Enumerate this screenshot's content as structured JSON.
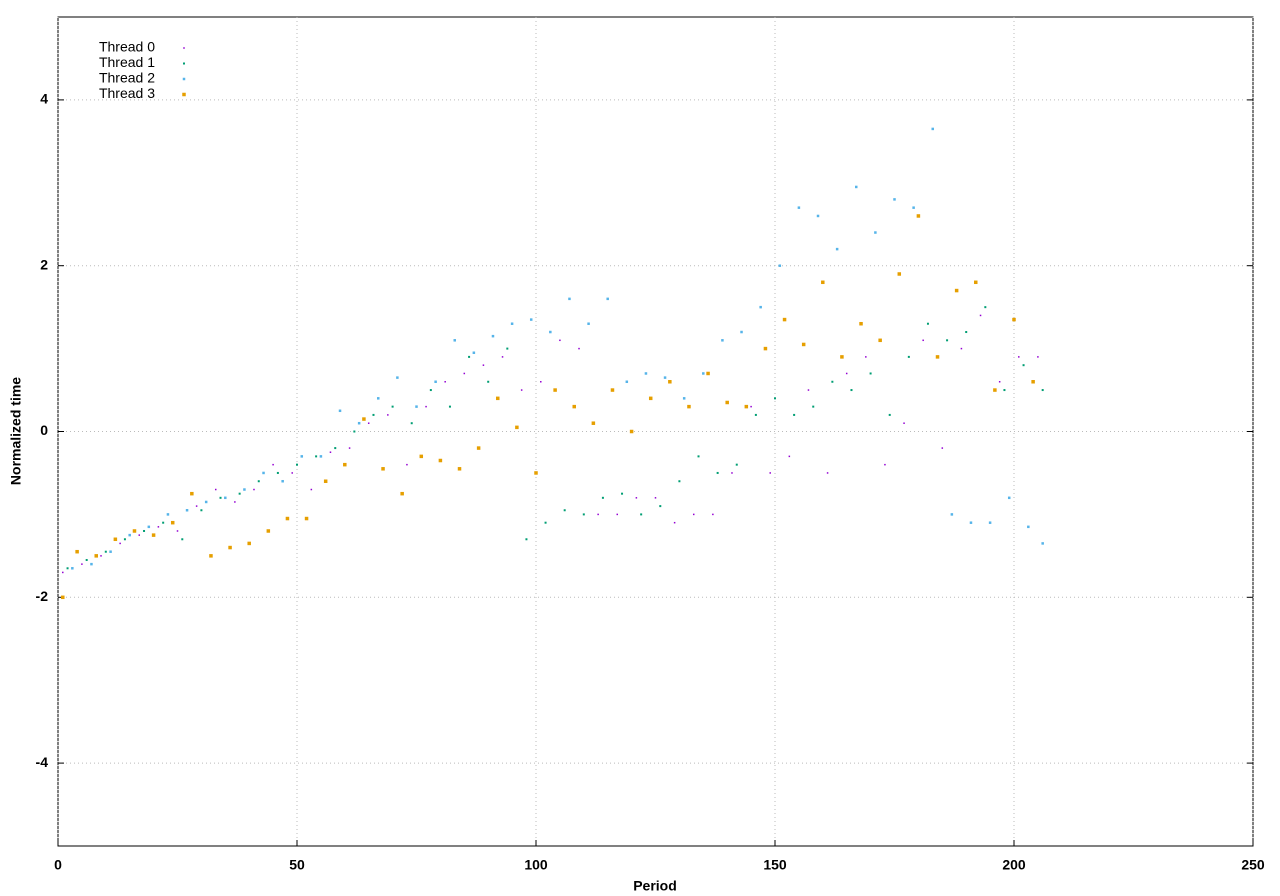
{
  "chart_data": {
    "type": "scatter",
    "x_label": "Period",
    "y_label": "Normalized time",
    "xlim": [
      0,
      250
    ],
    "xticks": [
      0,
      50,
      100,
      150,
      200,
      250
    ],
    "ylim": [
      -5,
      5
    ],
    "yticks": [
      -4,
      -2,
      0,
      2,
      4
    ],
    "grid": true,
    "legend": "top-left",
    "series": [
      {
        "name": "Thread 0",
        "color": "#9400d3",
        "x": [
          1,
          5,
          9,
          13,
          17,
          21,
          25,
          29,
          33,
          37,
          41,
          45,
          49,
          53,
          57,
          61,
          65,
          69,
          73,
          77,
          81,
          85,
          89,
          93,
          97,
          101,
          105,
          109,
          113,
          117,
          121,
          125,
          129,
          133,
          137,
          141,
          145,
          149,
          153,
          157,
          161,
          165,
          169,
          173,
          177,
          181,
          185,
          189,
          193,
          197,
          201,
          205
        ],
        "values": [
          -1.7,
          -1.6,
          -1.5,
          -1.35,
          -1.25,
          -1.15,
          -1.2,
          -0.9,
          -0.7,
          -0.85,
          -0.7,
          -0.4,
          -0.5,
          -0.7,
          -0.25,
          -0.2,
          0.1,
          0.2,
          -0.4,
          0.3,
          0.6,
          0.7,
          0.8,
          0.9,
          0.5,
          0.6,
          1.1,
          1.0,
          -1.0,
          -1.0,
          -0.8,
          -0.8,
          -1.1,
          -1.0,
          -1.0,
          -0.5,
          0.3,
          -0.5,
          -0.3,
          0.5,
          -0.5,
          0.7,
          0.9,
          -0.4,
          0.1,
          1.1,
          -0.2,
          1.0,
          1.4,
          0.6,
          0.9,
          0.9
        ]
      },
      {
        "name": "Thread 1",
        "color": "#009e73",
        "x": [
          2,
          6,
          10,
          14,
          18,
          22,
          26,
          30,
          34,
          38,
          42,
          46,
          50,
          54,
          58,
          62,
          66,
          70,
          74,
          78,
          82,
          86,
          90,
          94,
          98,
          102,
          106,
          110,
          114,
          118,
          122,
          126,
          130,
          134,
          138,
          142,
          146,
          150,
          154,
          158,
          162,
          166,
          170,
          174,
          178,
          182,
          186,
          190,
          194,
          198,
          202,
          206
        ],
        "values": [
          -1.65,
          -1.55,
          -1.45,
          -1.3,
          -1.2,
          -1.1,
          -1.3,
          -0.95,
          -0.8,
          -0.75,
          -0.6,
          -0.5,
          -0.4,
          -0.3,
          -0.2,
          0,
          0.2,
          0.3,
          0.1,
          0.5,
          0.3,
          0.9,
          0.6,
          1.0,
          -1.3,
          -1.1,
          -0.95,
          -1.0,
          -0.8,
          -0.75,
          -1.0,
          -0.9,
          -0.6,
          -0.3,
          -0.5,
          -0.4,
          0.2,
          0.4,
          0.2,
          0.3,
          0.6,
          0.5,
          0.7,
          0.2,
          0.9,
          1.3,
          1.1,
          1.2,
          1.5,
          0.5,
          0.8,
          0.5
        ]
      },
      {
        "name": "Thread 2",
        "color": "#56b4e9",
        "x": [
          3,
          7,
          11,
          15,
          19,
          23,
          27,
          31,
          35,
          39,
          43,
          47,
          51,
          55,
          59,
          63,
          67,
          71,
          75,
          79,
          83,
          87,
          91,
          95,
          99,
          103,
          107,
          111,
          115,
          119,
          123,
          127,
          131,
          135,
          139,
          143,
          147,
          151,
          155,
          159,
          163,
          167,
          171,
          175,
          179,
          183,
          187,
          191,
          195,
          199,
          203,
          206
        ],
        "values": [
          -1.65,
          -1.6,
          -1.45,
          -1.25,
          -1.15,
          -1.0,
          -0.95,
          -0.85,
          -0.8,
          -0.7,
          -0.5,
          -0.6,
          -0.3,
          -0.3,
          0.25,
          0.1,
          0.4,
          0.65,
          0.3,
          0.6,
          1.1,
          0.95,
          1.15,
          1.3,
          1.35,
          1.2,
          1.6,
          1.3,
          1.6,
          0.6,
          0.7,
          0.65,
          0.4,
          0.7,
          1.1,
          1.2,
          1.5,
          2.0,
          2.7,
          2.6,
          2.2,
          2.95,
          2.4,
          2.8,
          2.7,
          3.65,
          -1.0,
          -1.1,
          -1.1,
          -0.8,
          -1.15,
          -1.35
        ]
      },
      {
        "name": "Thread 3",
        "color": "#e69f00",
        "x": [
          1,
          4,
          8,
          12,
          16,
          20,
          24,
          28,
          32,
          36,
          40,
          44,
          48,
          52,
          56,
          60,
          64,
          68,
          72,
          76,
          80,
          84,
          88,
          92,
          96,
          100,
          104,
          108,
          112,
          116,
          120,
          124,
          128,
          132,
          136,
          140,
          144,
          148,
          152,
          156,
          160,
          164,
          168,
          172,
          176,
          180,
          184,
          188,
          192,
          196,
          200,
          204
        ],
        "values": [
          -2.0,
          -1.45,
          -1.5,
          -1.3,
          -1.2,
          -1.25,
          -1.1,
          -0.75,
          -1.5,
          -1.4,
          -1.35,
          -1.2,
          -1.05,
          -1.05,
          -0.6,
          -0.4,
          0.15,
          -0.45,
          -0.75,
          -0.3,
          -0.35,
          -0.45,
          -0.2,
          0.4,
          0.05,
          -0.5,
          0.5,
          0.3,
          0.1,
          0.5,
          0.0,
          0.4,
          0.6,
          0.3,
          0.7,
          0.35,
          0.3,
          1.0,
          1.35,
          1.05,
          1.8,
          0.9,
          1.3,
          1.1,
          1.9,
          2.6,
          0.9,
          1.7,
          1.8,
          0.5,
          1.35,
          0.6
        ]
      }
    ]
  }
}
